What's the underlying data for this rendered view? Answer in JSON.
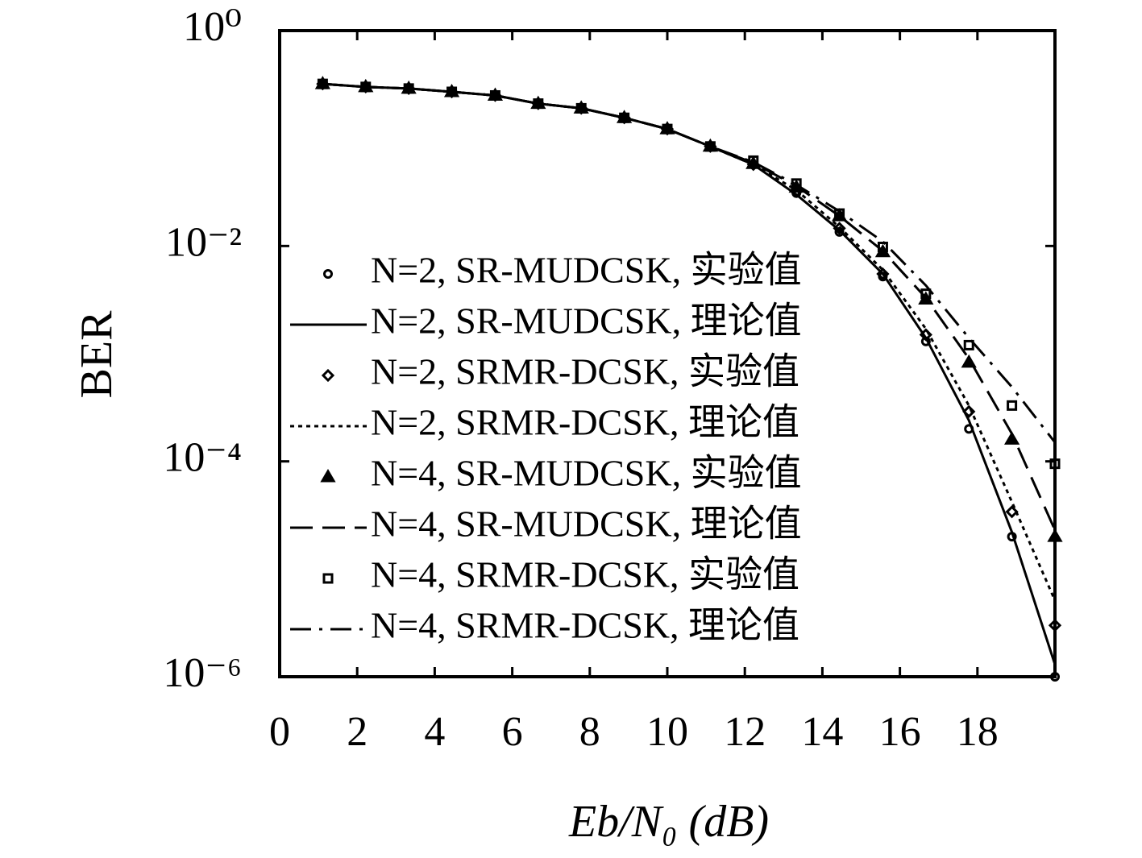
{
  "chart_data": {
    "type": "line",
    "xlabel": "Eb/N₀ (dB)",
    "ylabel": "BER",
    "xlim": [
      0,
      20
    ],
    "xticks": [
      0,
      2,
      4,
      6,
      8,
      10,
      12,
      14,
      16,
      18
    ],
    "ylim": [
      1e-06,
      1
    ],
    "yscale": "log",
    "yticks": [
      {
        "value": 1,
        "label": "10⁰"
      },
      {
        "value": 0.01,
        "label": "10⁻²"
      },
      {
        "value": 0.0001,
        "label": "10⁻⁴"
      },
      {
        "value": 1e-06,
        "label": "10⁻⁶"
      }
    ],
    "legend": "left",
    "x": [
      1.11,
      2.22,
      3.33,
      4.44,
      5.56,
      6.67,
      7.78,
      8.89,
      10,
      11.11,
      12.22,
      13.33,
      14.44,
      15.56,
      16.67,
      17.78,
      18.89,
      20
    ],
    "series": [
      {
        "name": "N=2, SR-MUDCSK, 实验值",
        "color": "#000000",
        "marker": "circle",
        "dash": "none",
        "values": [
          0.32,
          0.3,
          0.29,
          0.27,
          0.25,
          0.21,
          0.19,
          0.155,
          0.122,
          0.084,
          0.057,
          0.031,
          0.0135,
          0.0052,
          0.0013,
          0.0002,
          2e-05,
          1e-06
        ]
      },
      {
        "name": "N=2, SR-MUDCSK, 理论值",
        "color": "#000000",
        "marker": "none",
        "dash": "solid",
        "values": [
          0.32,
          0.3,
          0.29,
          0.27,
          0.25,
          0.21,
          0.19,
          0.155,
          0.122,
          0.084,
          0.057,
          0.03,
          0.014,
          0.0055,
          0.0014,
          0.00024,
          2.2e-05,
          1.3e-06
        ]
      },
      {
        "name": "N=2, SRMR-DCSK, 实验值",
        "color": "#000000",
        "marker": "diamond",
        "dash": "none",
        "values": [
          0.32,
          0.3,
          0.29,
          0.27,
          0.25,
          0.21,
          0.19,
          0.155,
          0.122,
          0.084,
          0.057,
          0.032,
          0.0146,
          0.0055,
          0.0015,
          0.00029,
          3.4e-05,
          3e-06
        ]
      },
      {
        "name": "N=2, SRMR-DCSK, 理论值",
        "color": "#000000",
        "marker": "none",
        "dash": "dotted",
        "values": [
          0.32,
          0.3,
          0.29,
          0.27,
          0.25,
          0.21,
          0.19,
          0.155,
          0.122,
          0.084,
          0.057,
          0.033,
          0.015,
          0.006,
          0.0017,
          0.00033,
          4.2e-05,
          5.1e-06
        ]
      },
      {
        "name": "N=4, SR-MUDCSK, 实验值",
        "color": "#000000",
        "marker": "triangle",
        "dash": "none",
        "values": [
          0.32,
          0.3,
          0.29,
          0.27,
          0.25,
          0.21,
          0.19,
          0.155,
          0.122,
          0.084,
          0.058,
          0.035,
          0.019,
          0.0088,
          0.0032,
          0.00083,
          0.00016,
          2e-05
        ]
      },
      {
        "name": "N=4, SR-MUDCSK, 理论值",
        "color": "#000000",
        "marker": "none",
        "dash": "dashed",
        "values": [
          0.32,
          0.3,
          0.29,
          0.27,
          0.25,
          0.21,
          0.19,
          0.155,
          0.122,
          0.084,
          0.059,
          0.036,
          0.019,
          0.009,
          0.0033,
          0.0009,
          0.00018,
          2.3e-05
        ]
      },
      {
        "name": "N=4, SRMR-DCSK, 实验值",
        "color": "#000000",
        "marker": "square",
        "dash": "none",
        "values": [
          0.32,
          0.3,
          0.29,
          0.27,
          0.25,
          0.21,
          0.19,
          0.155,
          0.122,
          0.084,
          0.062,
          0.038,
          0.02,
          0.0098,
          0.0036,
          0.0012,
          0.00033,
          9.5e-05
        ]
      },
      {
        "name": "N=4, SRMR-DCSK, 理论值",
        "color": "#000000",
        "marker": "none",
        "dash": "dashdot",
        "values": [
          0.32,
          0.3,
          0.29,
          0.27,
          0.25,
          0.21,
          0.19,
          0.155,
          0.122,
          0.084,
          0.06,
          0.037,
          0.021,
          0.011,
          0.0043,
          0.0014,
          0.00049,
          0.00015
        ]
      }
    ]
  }
}
